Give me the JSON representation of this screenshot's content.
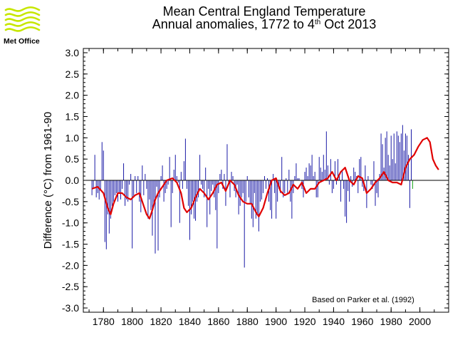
{
  "logo": {
    "text": "Met Office",
    "icon": "met-office-waves-logo",
    "color": "#c6e600"
  },
  "chart_data": {
    "type": "bar",
    "title_line1": "Mean Central England Temperature",
    "title_line2_prefix": "Annual anomalies, 1772 to 4",
    "title_line2_sup": "th",
    "title_line2_suffix": " Oct 2013",
    "ylabel": "Difference (°C) from 1961-90",
    "xlabel": "",
    "annotation": "Based on Parker et al. (1992)",
    "xlim": [
      1766,
      2020
    ],
    "ylim": [
      -3.1,
      3.1
    ],
    "x_ticks": [
      1780,
      1800,
      1820,
      1840,
      1860,
      1880,
      1900,
      1920,
      1940,
      1960,
      1980,
      2000
    ],
    "y_ticks": [
      3.0,
      2.5,
      2.0,
      1.5,
      1.0,
      0.5,
      0.0,
      -0.5,
      -1.0,
      -1.5,
      -2.0,
      -2.5,
      -3.0
    ],
    "y_tick_labels": [
      "3.0",
      "2.5",
      "2.0",
      "1.5",
      "1.0",
      "0.5",
      "0.0",
      "-0.5",
      "-1.0",
      "-1.5",
      "-2.0",
      "-2.5",
      "-3.0"
    ],
    "grid": false,
    "colors": {
      "bars": "#1a1aa6",
      "partial_year_bar": "#22aa22",
      "smoothed": "#e00000",
      "zero_line": "#000000"
    },
    "series": [
      {
        "kind": "bars",
        "start_year": 1772,
        "values": [
          -0.35,
          -0.2,
          0.6,
          -0.4,
          -0.3,
          -0.45,
          -0.25,
          0.9,
          0.7,
          -1.45,
          -1.62,
          -0.8,
          -1.25,
          -0.9,
          -0.6,
          -0.5,
          -0.35,
          -0.3,
          -0.5,
          -0.3,
          -0.45,
          -0.2,
          0.4,
          -0.6,
          -0.45,
          -0.5,
          -0.1,
          0.15,
          -1.6,
          -0.4,
          0.1,
          -0.3,
          0.1,
          -0.5,
          -0.75,
          0.35,
          -0.35,
          0.15,
          -0.2,
          -0.9,
          -0.45,
          -0.7,
          -1.3,
          -0.6,
          -1.72,
          -0.15,
          -1.65,
          -0.4,
          0.1,
          0.35,
          -0.5,
          -0.3,
          -0.2,
          -0.1,
          0.55,
          -1.1,
          -0.3,
          0.25,
          0.6,
          0.1,
          -0.05,
          -1.0,
          0.2,
          -0.2,
          0.45,
          0.98,
          -0.2,
          -0.6,
          -1.4,
          -0.8,
          -0.5,
          -0.9,
          -0.95,
          -0.5,
          -0.4,
          0.6,
          -0.1,
          -0.2,
          -0.4,
          0.3,
          -1.1,
          -0.2,
          -0.8,
          -0.25,
          -0.1,
          -0.4,
          -0.7,
          -1.6,
          -0.3,
          0.15,
          0.25,
          -0.2,
          0.15,
          -0.6,
          0.85,
          -0.1,
          -0.4,
          0.2,
          0.1,
          -0.25,
          -0.4,
          -0.1,
          -0.8,
          -0.6,
          -0.4,
          -0.3,
          -2.05,
          -0.5,
          0.1,
          -0.4,
          -0.55,
          -0.9,
          -1.1,
          -0.3,
          -0.9,
          -0.8,
          -1.2,
          -0.5,
          -0.45,
          -0.3,
          0.1,
          -0.2,
          0.05,
          -0.5,
          -0.7,
          -0.9,
          0.15,
          -0.3,
          -0.9,
          -0.5,
          -0.2,
          -0.3,
          0.55,
          -0.4,
          -0.3,
          0.05,
          -0.3,
          0.25,
          -0.5,
          -0.9,
          -0.3,
          0.1,
          0.4,
          0.05,
          0.05,
          0.0,
          -0.2,
          -0.4,
          0.2,
          0.3,
          0.1,
          0.4,
          0.35,
          0.6,
          0.1,
          0.2,
          -0.4,
          -0.4,
          0.55,
          0.3,
          0.2,
          0.6,
          0.25,
          1.15,
          0.35,
          -0.1,
          0.5,
          -0.3,
          -0.2,
          0.45,
          -0.1,
          0.5,
          0.1,
          -0.5,
          0.25,
          -0.2,
          -0.85,
          -1.0,
          -0.25,
          -0.5,
          0.1,
          -0.15,
          0.3,
          0.2,
          0.1,
          -0.3,
          0.5,
          0.55,
          -0.15,
          -0.25,
          0.35,
          -0.65,
          0.1,
          0.0,
          -0.1,
          -0.2,
          0.45,
          -0.6,
          -0.3,
          -0.4,
          0.15,
          1.1,
          0.85,
          0.3,
          1.0,
          1.15,
          0.6,
          0.35,
          1.05,
          0.5,
          1.1,
          0.4,
          1.15,
          1.05,
          0.9,
          1.1,
          1.3,
          0.7,
          1.1,
          1.05,
          0.6,
          -0.65,
          1.2,
          -0.2
        ],
        "last_bar_partial": true
      },
      {
        "kind": "smoothed",
        "x": [
          1772,
          1776,
          1780,
          1783,
          1785,
          1787,
          1790,
          1793,
          1796,
          1799,
          1802,
          1805,
          1808,
          1810,
          1812,
          1814,
          1816,
          1818,
          1821,
          1824,
          1828,
          1831,
          1834,
          1836,
          1838,
          1841,
          1844,
          1847,
          1850,
          1853,
          1856,
          1859,
          1862,
          1865,
          1868,
          1871,
          1874,
          1877,
          1880,
          1883,
          1886,
          1888,
          1891,
          1894,
          1897,
          1900,
          1903,
          1906,
          1909,
          1912,
          1915,
          1918,
          1921,
          1924,
          1927,
          1930,
          1933,
          1936,
          1939,
          1942,
          1945,
          1948,
          1951,
          1954,
          1957,
          1960,
          1963,
          1966,
          1969,
          1972,
          1975,
          1978,
          1981,
          1984,
          1987,
          1990,
          1993,
          1996,
          1999,
          2002,
          2005,
          2007,
          2009,
          2011,
          2013
        ],
        "y": [
          -0.2,
          -0.15,
          -0.3,
          -0.65,
          -0.8,
          -0.55,
          -0.3,
          -0.3,
          -0.4,
          -0.45,
          -0.35,
          -0.3,
          -0.6,
          -0.8,
          -0.9,
          -0.7,
          -0.45,
          -0.3,
          -0.15,
          0.0,
          0.05,
          -0.05,
          -0.3,
          -0.65,
          -0.75,
          -0.65,
          -0.4,
          -0.2,
          -0.3,
          -0.45,
          -0.3,
          -0.1,
          -0.05,
          -0.25,
          0.0,
          -0.1,
          -0.35,
          -0.5,
          -0.55,
          -0.55,
          -0.75,
          -0.85,
          -0.65,
          -0.3,
          0.0,
          0.05,
          -0.25,
          -0.35,
          -0.3,
          -0.1,
          -0.2,
          -0.05,
          -0.3,
          -0.2,
          -0.2,
          -0.05,
          0.0,
          0.05,
          0.2,
          0.0,
          0.2,
          0.3,
          0.0,
          -0.1,
          0.1,
          0.05,
          -0.3,
          -0.2,
          -0.05,
          0.05,
          0.2,
          0.0,
          -0.05,
          -0.05,
          -0.1,
          0.3,
          0.5,
          0.6,
          0.8,
          0.95,
          1.0,
          0.9,
          0.5,
          0.35,
          0.25
        ]
      }
    ]
  }
}
